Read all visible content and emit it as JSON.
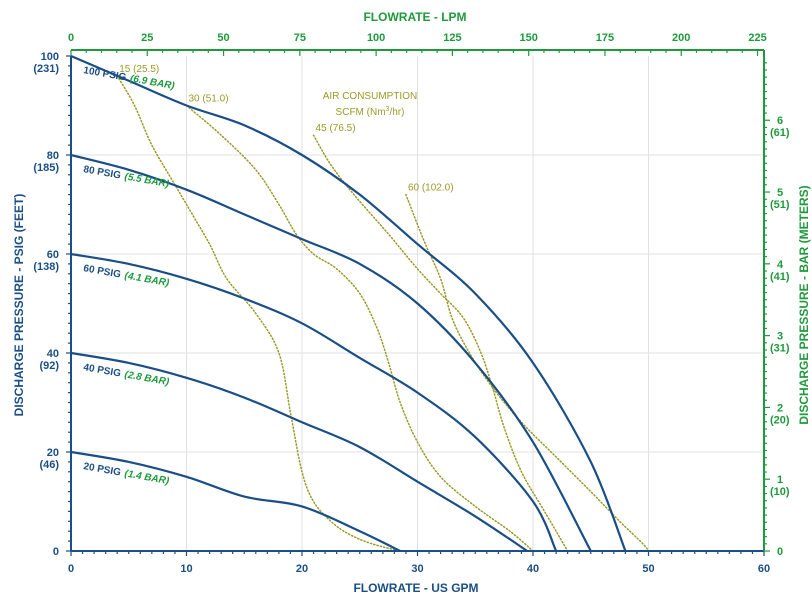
{
  "chart_data": {
    "type": "line",
    "title": "",
    "xlabel": "FLOWRATE - US GPM",
    "ylabel": "DISCHARGE PRESSURE - PSIG (FEET)",
    "x2label": "FLOWRATE - LPM",
    "y2label": "DISCHARGE PRESSURE - BAR (METERS)",
    "xlim": [
      0,
      60
    ],
    "ylim": [
      0,
      100
    ],
    "grid": true,
    "x_ticks": [
      "0",
      "10",
      "20",
      "30",
      "40",
      "50",
      "60"
    ],
    "y_ticks": [
      {
        "value": 0,
        "label": "0",
        "sub": ""
      },
      {
        "value": 20,
        "label": "20",
        "sub": "(46)"
      },
      {
        "value": 40,
        "label": "40",
        "sub": "(92)"
      },
      {
        "value": 60,
        "label": "60",
        "sub": "(138)"
      },
      {
        "value": 80,
        "label": "80",
        "sub": "(185)"
      },
      {
        "value": 100,
        "label": "100",
        "sub": "(231)"
      }
    ],
    "x2_ticks": [
      {
        "lpm": 0,
        "label": "0"
      },
      {
        "lpm": 25,
        "label": "25"
      },
      {
        "lpm": 50,
        "label": "50"
      },
      {
        "lpm": 75,
        "label": "75"
      },
      {
        "lpm": 100,
        "label": "100"
      },
      {
        "lpm": 125,
        "label": "125"
      },
      {
        "lpm": 150,
        "label": "150"
      },
      {
        "lpm": 175,
        "label": "175"
      },
      {
        "lpm": 200,
        "label": "200"
      },
      {
        "lpm": 225,
        "label": "225"
      }
    ],
    "y2_ticks": [
      {
        "bar": 0,
        "label": "0",
        "sub": ""
      },
      {
        "bar": 1,
        "label": "1",
        "sub": "(10)"
      },
      {
        "bar": 2,
        "label": "2",
        "sub": "(20)"
      },
      {
        "bar": 3,
        "label": "3",
        "sub": "(31)"
      },
      {
        "bar": 4,
        "label": "4",
        "sub": "(41)"
      },
      {
        "bar": 5,
        "label": "5",
        "sub": "(51)"
      },
      {
        "bar": 6,
        "label": "6",
        "sub": "(61)"
      }
    ],
    "series": [
      {
        "name": "100 PSIG",
        "name2": "(6.9 BAR)",
        "x": [
          0,
          5,
          10,
          15,
          20,
          25,
          30,
          35,
          40,
          45,
          48
        ],
        "y": [
          100,
          95,
          90,
          86,
          80,
          72,
          62,
          52,
          38,
          18,
          0
        ]
      },
      {
        "name": "80 PSIG",
        "name2": "(5.5 BAR)",
        "x": [
          0,
          5,
          10,
          15,
          20,
          25,
          30,
          35,
          40,
          45
        ],
        "y": [
          80,
          77,
          73,
          68,
          63,
          58,
          50,
          38,
          22,
          0
        ]
      },
      {
        "name": "60 PSIG",
        "name2": "(4.1 BAR)",
        "x": [
          0,
          5,
          10,
          15,
          20,
          25,
          30,
          35,
          40,
          42
        ],
        "y": [
          60,
          58,
          55,
          51,
          46,
          39,
          32,
          23,
          10,
          0
        ]
      },
      {
        "name": "40 PSIG",
        "name2": "(2.8 BAR)",
        "x": [
          0,
          5,
          10,
          15,
          20,
          25,
          30,
          35,
          39.5
        ],
        "y": [
          40,
          38,
          35,
          31,
          26,
          21,
          14,
          7,
          0
        ]
      },
      {
        "name": "20 PSIG",
        "name2": "(1.4 BAR)",
        "x": [
          0,
          5,
          10,
          15,
          20,
          25,
          28.5
        ],
        "y": [
          20,
          18,
          15,
          11,
          9,
          4,
          0
        ]
      }
    ],
    "air_title": "AIR CONSUMPTION",
    "air_unit_main": "SCFM (Nm",
    "air_unit_sup": "3",
    "air_unit_tail": "/hr)",
    "air_lines": [
      {
        "label": "15 (25.5)",
        "x": [
          4,
          5.5,
          7,
          9,
          10.5,
          12,
          13.5,
          16,
          18,
          19,
          20,
          21,
          22.5,
          24,
          26,
          28.5
        ],
        "y": [
          96,
          90,
          82,
          74,
          68,
          62,
          55,
          48,
          40,
          28,
          16,
          10,
          6,
          3.5,
          1.5,
          0
        ]
      },
      {
        "label": "30 (51.0)",
        "x": [
          10,
          13,
          16,
          18,
          19.5,
          21,
          23,
          25,
          26.5,
          27.5,
          28.5,
          30,
          32,
          35,
          38,
          40
        ],
        "y": [
          90,
          84,
          77,
          70,
          64,
          60,
          57,
          52,
          45,
          38,
          30,
          22,
          15,
          9,
          4,
          0
        ]
      },
      {
        "label": "45 (76.5)",
        "x": [
          21,
          22.5,
          24.5,
          27.5,
          30,
          32,
          34,
          35.5,
          36.5,
          37.5,
          39,
          41,
          43
        ],
        "y": [
          84,
          78,
          72,
          64,
          57,
          52,
          47,
          40,
          33,
          25,
          16,
          8,
          0
        ]
      },
      {
        "label": "60 (102.0)",
        "x": [
          29,
          30.5,
          32,
          33,
          34.5,
          36.5,
          39,
          42,
          45,
          47.5,
          49.5,
          50
        ],
        "y": [
          72,
          63,
          55,
          47,
          40,
          33,
          26,
          19,
          12,
          6,
          1.5,
          0
        ]
      }
    ]
  }
}
